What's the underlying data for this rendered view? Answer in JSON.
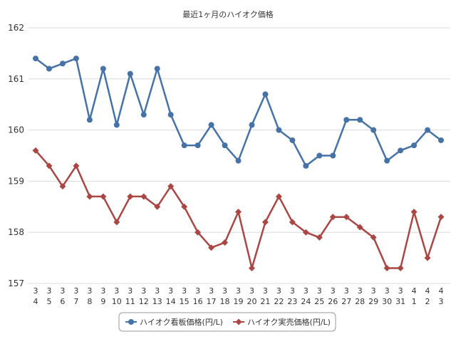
{
  "chart_data": {
    "type": "line",
    "title": "最近1ヶ月のハイオク価格",
    "xlabel": "",
    "ylabel": "",
    "ylim": [
      157,
      162
    ],
    "yticks": [
      "157",
      "158",
      "159",
      "160",
      "161",
      "162"
    ],
    "grid": true,
    "legend_position": "bottom",
    "categories": [
      [
        "3",
        "4"
      ],
      [
        "3",
        "5"
      ],
      [
        "3",
        "6"
      ],
      [
        "3",
        "7"
      ],
      [
        "3",
        "8"
      ],
      [
        "3",
        "9"
      ],
      [
        "3",
        "10"
      ],
      [
        "3",
        "11"
      ],
      [
        "3",
        "12"
      ],
      [
        "3",
        "13"
      ],
      [
        "3",
        "14"
      ],
      [
        "3",
        "15"
      ],
      [
        "3",
        "16"
      ],
      [
        "3",
        "17"
      ],
      [
        "3",
        "18"
      ],
      [
        "3",
        "19"
      ],
      [
        "3",
        "20"
      ],
      [
        "3",
        "21"
      ],
      [
        "3",
        "22"
      ],
      [
        "3",
        "23"
      ],
      [
        "3",
        "24"
      ],
      [
        "3",
        "25"
      ],
      [
        "3",
        "26"
      ],
      [
        "3",
        "27"
      ],
      [
        "3",
        "28"
      ],
      [
        "3",
        "29"
      ],
      [
        "3",
        "30"
      ],
      [
        "3",
        "31"
      ],
      [
        "4",
        "1"
      ],
      [
        "4",
        "2"
      ],
      [
        "4",
        "3"
      ]
    ],
    "series": [
      {
        "name": "ハイオク看板価格(円/L)",
        "color": "#4572a7",
        "marker": "circle",
        "values": [
          161.4,
          161.2,
          161.3,
          161.4,
          160.2,
          161.2,
          160.1,
          161.1,
          160.3,
          161.2,
          160.3,
          159.7,
          159.7,
          160.1,
          159.7,
          159.4,
          160.1,
          160.7,
          160.0,
          159.8,
          159.3,
          159.5,
          159.5,
          160.2,
          160.2,
          160.0,
          159.4,
          159.6,
          159.7,
          160.0,
          159.8
        ]
      },
      {
        "name": "ハイオク実売価格(円/L)",
        "color": "#aa4643",
        "marker": "diamond",
        "values": [
          159.6,
          159.3,
          158.9,
          159.3,
          158.7,
          158.7,
          158.2,
          158.7,
          158.7,
          158.5,
          158.9,
          158.5,
          158.0,
          157.7,
          157.8,
          158.4,
          157.3,
          158.2,
          158.7,
          158.2,
          158.0,
          157.9,
          158.3,
          158.3,
          158.1,
          157.9,
          157.3,
          157.3,
          158.4,
          157.5,
          158.3
        ]
      }
    ]
  }
}
